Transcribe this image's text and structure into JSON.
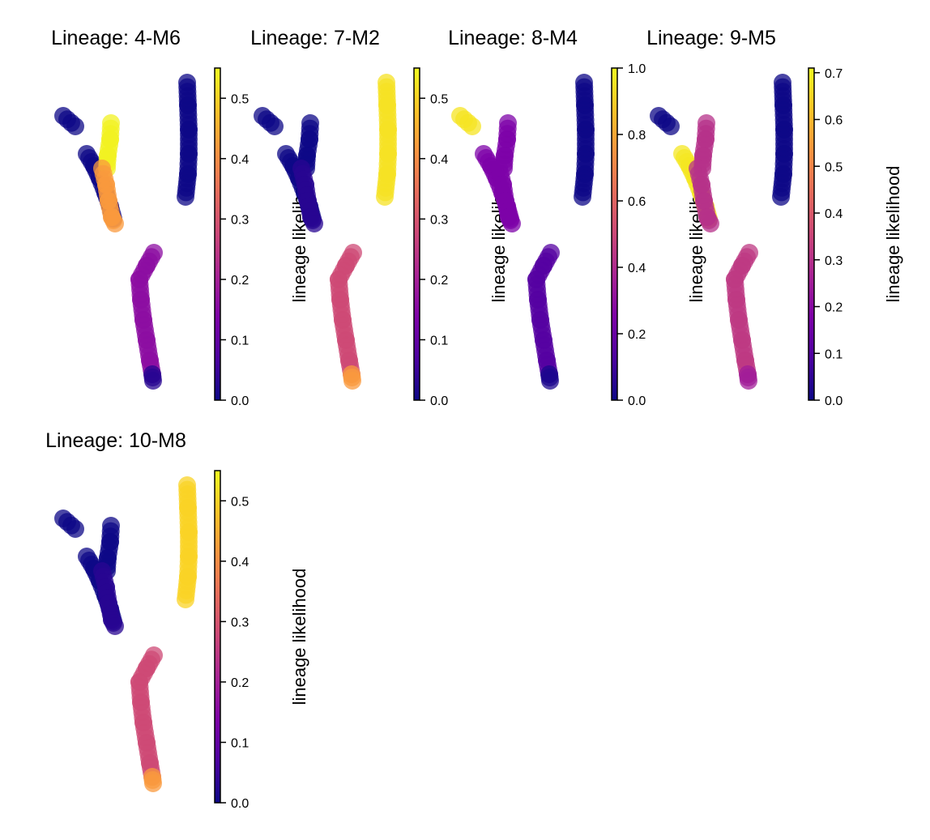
{
  "chart_data": [
    {
      "type": "scatter",
      "title": "Lineage: 4-M6",
      "colorbar": {
        "label": "lineage likelihood",
        "colormap": "plasma",
        "range": [
          0.0,
          0.55
        ],
        "ticks": [
          "0.0",
          "0.1",
          "0.2",
          "0.3",
          "0.4",
          "0.5"
        ],
        "tick_values": [
          0,
          0.1,
          0.2,
          0.3,
          0.4,
          0.5
        ]
      },
      "cluster_values": {
        "far_left": 0.0,
        "left_branch": 0.0,
        "middle_upper": 0.54,
        "middle_lower": 0.42,
        "right_column": 0.0,
        "bottom_stem": 0.16,
        "bottom_tip": 0.03
      }
    },
    {
      "type": "scatter",
      "title": "Lineage: 7-M2",
      "colorbar": {
        "label": "lineage likelihood",
        "colormap": "plasma",
        "range": [
          0.0,
          0.55
        ],
        "ticks": [
          "0.0",
          "0.1",
          "0.2",
          "0.3",
          "0.4",
          "0.5"
        ],
        "tick_values": [
          0,
          0.1,
          0.2,
          0.3,
          0.4,
          0.5
        ]
      },
      "cluster_values": {
        "far_left": 0.0,
        "left_branch": 0.0,
        "middle_upper": 0.0,
        "middle_lower": 0.03,
        "right_column": 0.52,
        "bottom_stem": 0.28,
        "bottom_tip": 0.42
      }
    },
    {
      "type": "scatter",
      "title": "Lineage: 8-M4",
      "colorbar": {
        "label": "lineage likelihood",
        "colormap": "plasma",
        "range": [
          0.0,
          1.0
        ],
        "ticks": [
          "0.0",
          "0.2",
          "0.4",
          "0.6",
          "0.8",
          "1.0"
        ],
        "tick_values": [
          0,
          0.2,
          0.4,
          0.6,
          0.8,
          1.0
        ]
      },
      "cluster_values": {
        "far_left": 0.95,
        "left_branch": 0.25,
        "middle_upper": 0.25,
        "middle_lower": 0.25,
        "right_column": 0.0,
        "bottom_stem": 0.15,
        "bottom_tip": 0.03
      }
    },
    {
      "type": "scatter",
      "title": "Lineage: 9-M5",
      "colorbar": {
        "label": "lineage likelihood",
        "colormap": "plasma",
        "range": [
          0.0,
          0.71
        ],
        "ticks": [
          "0.0",
          "0.1",
          "0.2",
          "0.3",
          "0.4",
          "0.5",
          "0.6",
          "0.7"
        ],
        "tick_values": [
          0,
          0.1,
          0.2,
          0.3,
          0.4,
          0.5,
          0.6,
          0.7
        ]
      },
      "cluster_values": {
        "far_left": 0.0,
        "left_branch": 0.68,
        "middle_upper": 0.3,
        "middle_lower": 0.3,
        "right_column": 0.0,
        "bottom_stem": 0.32,
        "bottom_tip": 0.25
      }
    },
    {
      "type": "scatter",
      "title": "Lineage: 10-M8",
      "colorbar": {
        "label": "lineage likelihood",
        "colormap": "plasma",
        "range": [
          0.0,
          0.55
        ],
        "ticks": [
          "0.0",
          "0.1",
          "0.2",
          "0.3",
          "0.4",
          "0.5"
        ],
        "tick_values": [
          0,
          0.1,
          0.2,
          0.3,
          0.4,
          0.5
        ]
      },
      "cluster_values": {
        "far_left": 0.0,
        "left_branch": 0.0,
        "middle_upper": 0.0,
        "middle_lower": 0.03,
        "right_column": 0.5,
        "bottom_stem": 0.28,
        "bottom_tip": 0.42
      }
    }
  ]
}
